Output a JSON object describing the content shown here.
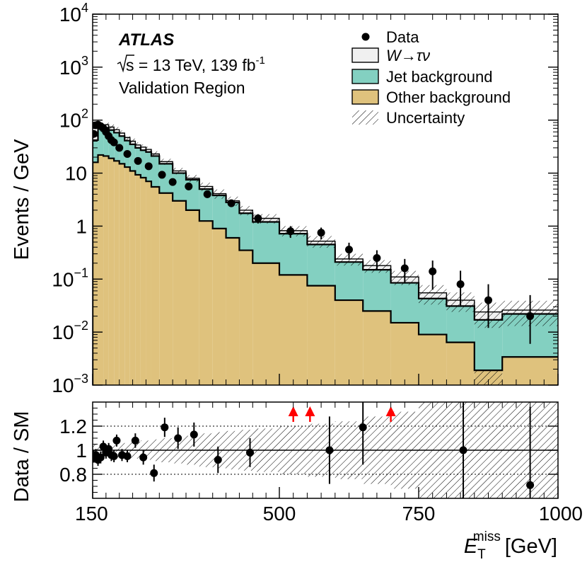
{
  "chart_data": [
    {
      "type": "histogram-stacked-log",
      "ylabel": "Events / GeV",
      "ylim": [
        0.001,
        10000
      ],
      "y_ticks": [
        {
          "value": 10000,
          "base": "10",
          "exp": "4"
        },
        {
          "value": 1000,
          "base": "10",
          "exp": "3"
        },
        {
          "value": 100,
          "base": "10",
          "exp": "2"
        },
        {
          "value": 10,
          "base": "10",
          "exp": ""
        },
        {
          "value": 1,
          "base": "1",
          "exp": ""
        },
        {
          "value": 0.1,
          "base": "10",
          "exp": "−1"
        },
        {
          "value": 0.01,
          "base": "10",
          "exp": "−2"
        },
        {
          "value": 0.001,
          "base": "10",
          "exp": "−3"
        }
      ],
      "experiment": "ATLAS",
      "energy_label": "s = 13 TeV, 139 fb",
      "lumi_exp": "-1",
      "region": "Validation Region",
      "legend": {
        "data": "Data",
        "signal": "W→τν",
        "jet": "Jet background",
        "other": "Other background",
        "unc": "Uncertainty"
      },
      "colors": {
        "signal": "#f0f0f0",
        "jet": "#83d0c1",
        "other": "#dfc27d",
        "line": "#000000"
      },
      "bins": [
        150,
        160,
        170,
        180,
        190,
        200,
        210,
        220,
        230,
        240,
        250,
        260,
        275,
        300,
        325,
        350,
        375,
        400,
        425,
        450,
        500,
        550,
        600,
        650,
        700,
        750,
        800,
        850,
        900,
        1000
      ],
      "other_bkg": [
        16,
        22,
        21,
        19,
        17,
        15,
        13,
        11,
        9.3,
        8.2,
        7,
        5.5,
        4.2,
        3.0,
        2.0,
        1.25,
        0.9,
        0.6,
        0.35,
        0.2,
        0.12,
        0.075,
        0.04,
        0.025,
        0.015,
        0.009,
        0.0064,
        0.0019,
        0.0034
      ],
      "total_bkg": [
        42,
        70,
        72,
        65,
        58,
        50,
        41,
        35,
        30,
        27,
        25,
        21,
        15,
        10,
        7.5,
        5.0,
        3.8,
        2.8,
        1.75,
        1.2,
        0.72,
        0.45,
        0.21,
        0.15,
        0.085,
        0.043,
        0.031,
        0.017,
        0.022
      ],
      "stack_total": [
        50,
        80,
        82,
        74,
        66,
        57,
        47,
        40,
        34,
        31,
        28,
        23,
        16.5,
        11,
        8.0,
        5.6,
        4.1,
        3.0,
        2.0,
        1.4,
        0.82,
        0.52,
        0.24,
        0.18,
        0.11,
        0.055,
        0.04,
        0.024,
        0.026
      ],
      "unc_band": [
        0.12,
        0.12,
        0.12,
        0.12,
        0.12,
        0.12,
        0.12,
        0.12,
        0.12,
        0.12,
        0.12,
        0.12,
        0.13,
        0.14,
        0.15,
        0.18,
        0.2,
        0.2,
        0.2,
        0.2,
        0.22,
        0.25,
        0.25,
        0.27,
        0.3,
        0.4,
        0.4,
        0.5,
        0.5
      ],
      "data_points": [
        {
          "x": 152,
          "y": 55,
          "lo": 0.9,
          "hi": 1.1
        },
        {
          "x": 155,
          "y": 80,
          "lo": 0.9,
          "hi": 1.1
        },
        {
          "x": 160,
          "y": 82,
          "lo": 0.9,
          "hi": 1.1
        },
        {
          "x": 165,
          "y": 77,
          "lo": 0.9,
          "hi": 1.1
        },
        {
          "x": 170,
          "y": 70,
          "lo": 0.9,
          "hi": 1.1
        },
        {
          "x": 175,
          "y": 60,
          "lo": 0.9,
          "hi": 1.1
        },
        {
          "x": 180,
          "y": 50,
          "lo": 0.9,
          "hi": 1.1
        },
        {
          "x": 185,
          "y": 42,
          "lo": 0.9,
          "hi": 1.1
        },
        {
          "x": 190,
          "y": 38,
          "lo": 0.9,
          "hi": 1.1
        },
        {
          "x": 200,
          "y": 30,
          "lo": 0.9,
          "hi": 1.1
        },
        {
          "x": 215,
          "y": 23,
          "lo": 0.9,
          "hi": 1.1
        },
        {
          "x": 235,
          "y": 17,
          "lo": 0.9,
          "hi": 1.1
        },
        {
          "x": 255,
          "y": 13.5,
          "lo": 0.9,
          "hi": 1.1
        },
        {
          "x": 280,
          "y": 9.3,
          "lo": 0.9,
          "hi": 1.1
        },
        {
          "x": 300,
          "y": 6.8,
          "lo": 0.85,
          "hi": 1.15
        },
        {
          "x": 330,
          "y": 5.6,
          "lo": 0.85,
          "hi": 1.15
        },
        {
          "x": 365,
          "y": 4.0,
          "lo": 0.85,
          "hi": 1.15
        },
        {
          "x": 410,
          "y": 2.7,
          "lo": 0.85,
          "hi": 1.15
        },
        {
          "x": 460,
          "y": 1.4,
          "lo": 0.8,
          "hi": 1.2
        },
        {
          "x": 520,
          "y": 0.8,
          "lo": 0.75,
          "hi": 1.25
        },
        {
          "x": 575,
          "y": 0.75,
          "lo": 0.75,
          "hi": 1.25
        },
        {
          "x": 625,
          "y": 0.36,
          "lo": 0.65,
          "hi": 1.35
        },
        {
          "x": 675,
          "y": 0.25,
          "lo": 0.6,
          "hi": 1.4
        },
        {
          "x": 725,
          "y": 0.16,
          "lo": 0.55,
          "hi": 1.5
        },
        {
          "x": 775,
          "y": 0.14,
          "lo": 0.45,
          "hi": 1.6
        },
        {
          "x": 825,
          "y": 0.08,
          "lo": 0.4,
          "hi": 1.8
        },
        {
          "x": 875,
          "y": 0.04,
          "lo": 0.3,
          "hi": 2.0
        },
        {
          "x": 950,
          "y": 0.02,
          "lo": 0.3,
          "hi": 2.5
        }
      ]
    },
    {
      "type": "ratio",
      "ylabel": "Data / SM",
      "xlabel_base": "E",
      "xlabel_sup": "miss",
      "xlabel_sub": "T",
      "xlabel_unit": "[GeV]",
      "ylim": [
        0.6,
        1.4
      ],
      "y_ticks": [
        "0.8",
        "1",
        "1.2"
      ],
      "x_ticks": [
        "150",
        "500",
        "750",
        "1000"
      ],
      "x_tick_values": [
        150,
        500,
        750,
        1000
      ],
      "points": [
        {
          "x": 152,
          "y": 0.95,
          "err": 0.05
        },
        {
          "x": 156,
          "y": 0.96,
          "err": 0.05
        },
        {
          "x": 160,
          "y": 0.92,
          "err": 0.05
        },
        {
          "x": 165,
          "y": 0.94,
          "err": 0.05
        },
        {
          "x": 170,
          "y": 1.03,
          "err": 0.05
        },
        {
          "x": 175,
          "y": 0.98,
          "err": 0.05
        },
        {
          "x": 180,
          "y": 1.01,
          "err": 0.05
        },
        {
          "x": 185,
          "y": 0.96,
          "err": 0.05
        },
        {
          "x": 190,
          "y": 0.95,
          "err": 0.05
        },
        {
          "x": 195,
          "y": 1.08,
          "err": 0.05
        },
        {
          "x": 205,
          "y": 0.96,
          "err": 0.05
        },
        {
          "x": 215,
          "y": 0.95,
          "err": 0.05
        },
        {
          "x": 230,
          "y": 1.08,
          "err": 0.06
        },
        {
          "x": 245,
          "y": 0.94,
          "err": 0.06
        },
        {
          "x": 265,
          "y": 0.81,
          "err": 0.07
        },
        {
          "x": 285,
          "y": 1.19,
          "err": 0.08
        },
        {
          "x": 310,
          "y": 1.1,
          "err": 0.09
        },
        {
          "x": 340,
          "y": 1.13,
          "err": 0.1
        },
        {
          "x": 385,
          "y": 0.92,
          "err": 0.11
        },
        {
          "x": 445,
          "y": 0.98,
          "err": 0.12
        },
        {
          "x": 590,
          "y": 1.0,
          "err": 0.28
        },
        {
          "x": 650,
          "y": 1.19,
          "err": 0.31
        },
        {
          "x": 830,
          "y": 1.0,
          "err": 0.6
        },
        {
          "x": 950,
          "y": 0.71,
          "err": 0.65
        }
      ],
      "arrows_x": [
        525,
        555,
        700
      ],
      "band_edges": [
        150,
        160,
        170,
        180,
        190,
        200,
        210,
        220,
        230,
        240,
        250,
        260,
        275,
        300,
        325,
        350,
        375,
        400,
        425,
        450,
        500,
        550,
        600,
        650,
        700,
        750,
        800,
        850,
        900,
        1000
      ],
      "band_half": [
        0.05,
        0.05,
        0.05,
        0.05,
        0.06,
        0.06,
        0.06,
        0.07,
        0.07,
        0.08,
        0.08,
        0.09,
        0.1,
        0.11,
        0.12,
        0.14,
        0.15,
        0.16,
        0.17,
        0.18,
        0.2,
        0.22,
        0.24,
        0.28,
        0.32,
        0.4,
        0.4,
        0.4,
        0.4
      ]
    }
  ]
}
